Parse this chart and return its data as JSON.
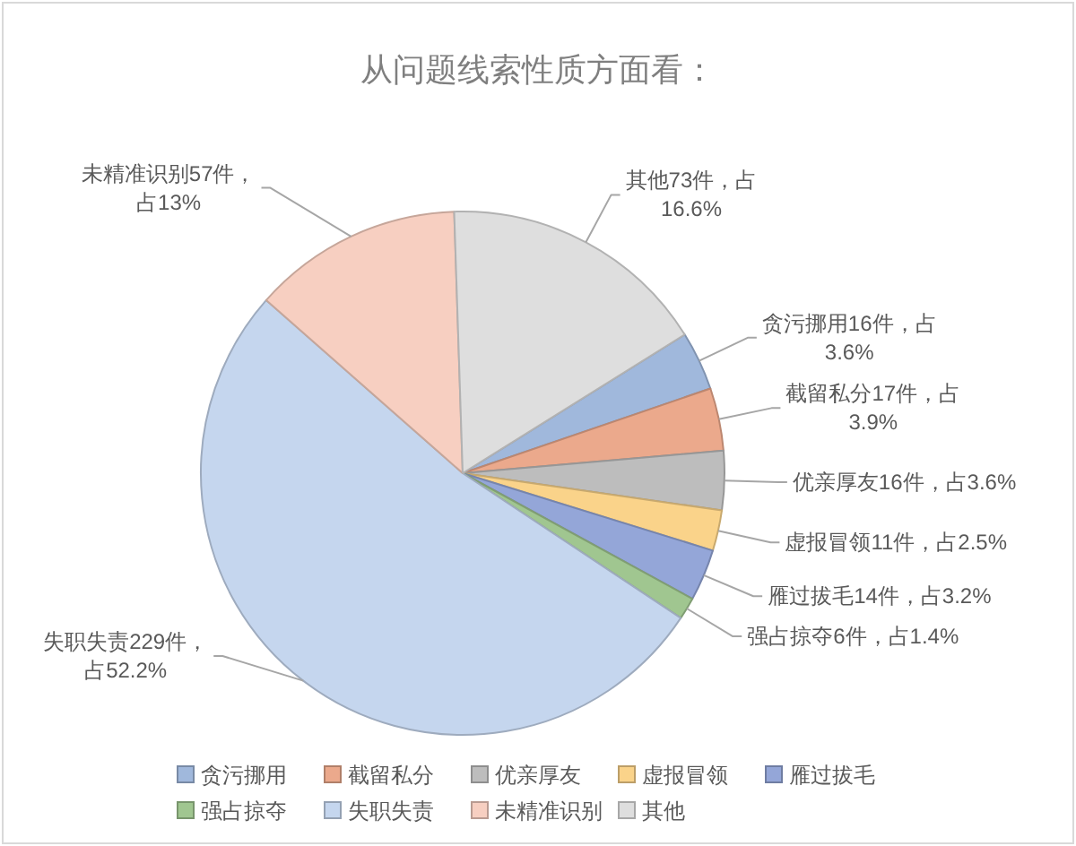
{
  "chart_data": {
    "type": "pie",
    "title": "从问题线索性质方面看：",
    "categories": [
      "贪污挪用",
      "截留私分",
      "优亲厚友",
      "虚报冒领",
      "雁过拔毛",
      "强占掠夺",
      "失职失责",
      "未精准识别",
      "其他"
    ],
    "values": [
      16,
      17,
      16,
      11,
      14,
      6,
      229,
      57,
      73
    ],
    "colors": [
      "#a0b8dc",
      "#eba98c",
      "#bdbdbd",
      "#fad38a",
      "#94a6d8",
      "#a0c690",
      "#c5d6ee",
      "#f7cfc1",
      "#dedede"
    ],
    "value_labels": [
      "贪污挪用16件，占3.6%",
      "截留私分17件，占3.9%",
      "优亲厚友16件，占3.6%",
      "虚报冒领11件，占2.5%",
      "雁过拔毛14件，占3.2%",
      "强占掠夺6件，占1.4%",
      "失职失责229件，占52.2%",
      "未精准识别57件，占13%",
      "其他73件，占16.6%"
    ],
    "legend": "bottom"
  }
}
